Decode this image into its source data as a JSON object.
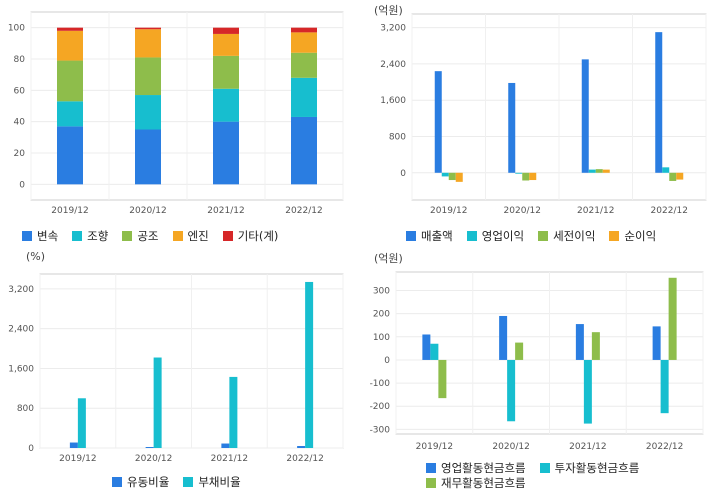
{
  "chart_data": [
    {
      "type": "bar",
      "stacked": true,
      "unit_label": "",
      "categories": [
        "2019/12",
        "2020/12",
        "2021/12",
        "2022/12"
      ],
      "series": [
        {
          "name": "변속",
          "color": "#2a7de1",
          "values": [
            37,
            35,
            40,
            43
          ]
        },
        {
          "name": "조향",
          "color": "#17becf",
          "values": [
            16,
            22,
            21,
            25
          ]
        },
        {
          "name": "공조",
          "color": "#8ebd4b",
          "values": [
            26,
            24,
            21,
            16
          ]
        },
        {
          "name": "엔진",
          "color": "#f5a623",
          "values": [
            19,
            18,
            14,
            13
          ]
        },
        {
          "name": "기타(계)",
          "color": "#d62728",
          "values": [
            2,
            1,
            4,
            3
          ]
        }
      ],
      "yticks": [
        0,
        20,
        40,
        60,
        80,
        100
      ],
      "ylim": [
        -10,
        110
      ],
      "legend_position": "bottom"
    },
    {
      "type": "bar",
      "unit_label": "(억원)",
      "categories": [
        "2019/12",
        "2020/12",
        "2021/12",
        "2022/12"
      ],
      "series": [
        {
          "name": "매출액",
          "color": "#2a7de1",
          "values": [
            2240,
            1980,
            2500,
            3100
          ]
        },
        {
          "name": "영업이익",
          "color": "#17becf",
          "values": [
            -80,
            -20,
            70,
            120
          ]
        },
        {
          "name": "세전이익",
          "color": "#8ebd4b",
          "values": [
            -160,
            -170,
            80,
            -180
          ]
        },
        {
          "name": "순이익",
          "color": "#f5a623",
          "values": [
            -200,
            -160,
            70,
            -150
          ]
        }
      ],
      "yticks": [
        0,
        800,
        1600,
        2400,
        3200
      ],
      "ytick_labels": [
        "0",
        "800",
        "1,600",
        "2,400",
        "3,200"
      ],
      "ylim": [
        -600,
        3500
      ],
      "legend_position": "bottom"
    },
    {
      "type": "bar",
      "unit_label": "(%)",
      "categories": [
        "2019/12",
        "2020/12",
        "2021/12",
        "2022/12"
      ],
      "series": [
        {
          "name": "유동비율",
          "color": "#2a7de1",
          "values": [
            110,
            20,
            90,
            40
          ]
        },
        {
          "name": "부채비율",
          "color": "#17becf",
          "values": [
            1000,
            1820,
            1430,
            3340
          ]
        }
      ],
      "yticks": [
        0,
        800,
        1600,
        2400,
        3200
      ],
      "ytick_labels": [
        "0",
        "800",
        "1,600",
        "2,400",
        "3,200"
      ],
      "ylim": [
        0,
        3500
      ],
      "legend_position": "bottom"
    },
    {
      "type": "bar",
      "unit_label": "(억원)",
      "categories": [
        "2019/12",
        "2020/12",
        "2021/12",
        "2022/12"
      ],
      "series": [
        {
          "name": "영업활동현금흐름",
          "color": "#2a7de1",
          "values": [
            110,
            190,
            155,
            145
          ]
        },
        {
          "name": "투자활동현금흐름",
          "color": "#17becf",
          "values": [
            70,
            -265,
            -275,
            -230
          ]
        },
        {
          "name": "재무활동현금흐름",
          "color": "#8ebd4b",
          "values": [
            -165,
            75,
            120,
            355
          ]
        }
      ],
      "yticks": [
        -300,
        -200,
        -100,
        0,
        100,
        200,
        300
      ],
      "ytick_labels": [
        "-300",
        "-200",
        "-100",
        "0",
        "100",
        "200",
        "300"
      ],
      "ylim": [
        -320,
        380
      ],
      "legend_position": "bottom"
    }
  ]
}
